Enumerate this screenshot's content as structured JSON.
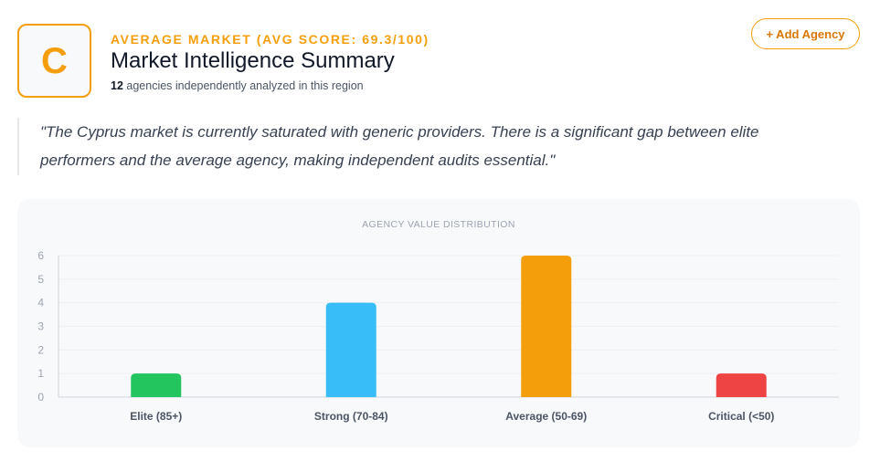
{
  "grade": {
    "letter": "C",
    "color": "#f59e0b"
  },
  "header": {
    "eyebrow": "AVERAGE MARKET (AVG SCORE: 69.3/100)",
    "title": "Market Intelligence Summary",
    "agency_count": "12",
    "subline_rest": "agencies independently analyzed in this region"
  },
  "actions": {
    "add_agency_label": "+ Add Agency"
  },
  "quote": "\"The Cyprus market is currently saturated with generic providers. There is a significant gap between elite performers and the average agency, making independent audits essential.\"",
  "chart_data": {
    "type": "bar",
    "title": "AGENCY VALUE DISTRIBUTION",
    "categories": [
      "Elite (85+)",
      "Strong (70-84)",
      "Average (50-69)",
      "Critical (<50)"
    ],
    "values": [
      1,
      4,
      6,
      1
    ],
    "colors": [
      "#22c55e",
      "#38bdf8",
      "#f59e0b",
      "#ef4444"
    ],
    "yticks": [
      0,
      1,
      2,
      3,
      4,
      5,
      6
    ],
    "ylim": [
      0,
      6
    ],
    "xlabel": "",
    "ylabel": "",
    "grid": true
  }
}
